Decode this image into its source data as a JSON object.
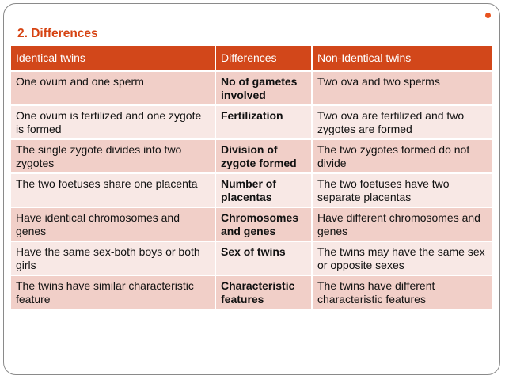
{
  "title": "2. Differences",
  "colors": {
    "accent": "#d64312",
    "header_bg": "#d2471a",
    "row_dark": "#f1cfc8",
    "row_light": "#f8e8e5"
  },
  "table": {
    "headers": [
      "Identical twins",
      "Differences",
      "Non-Identical twins"
    ],
    "rows": [
      [
        "One ovum and one sperm",
        "No of gametes involved",
        "Two ova and two sperms"
      ],
      [
        "One ovum is fertilized and one zygote is formed",
        "Fertilization",
        "Two ova are fertilized and two zygotes are formed"
      ],
      [
        "The single zygote divides into two zygotes",
        "Division of zygote formed",
        "The two zygotes formed do not divide"
      ],
      [
        "The two foetuses share one placenta",
        "Number of placentas",
        "The two foetuses have two separate placentas"
      ],
      [
        "Have identical chromosomes and genes",
        "Chromosomes and genes",
        "Have different chromosomes and genes"
      ],
      [
        "Have the same sex-both boys or both girls",
        "Sex of twins",
        "The twins may have the same sex or opposite sexes"
      ],
      [
        "The twins have similar characteristic feature",
        "Characteristic features",
        "The twins have different characteristic features"
      ]
    ]
  }
}
